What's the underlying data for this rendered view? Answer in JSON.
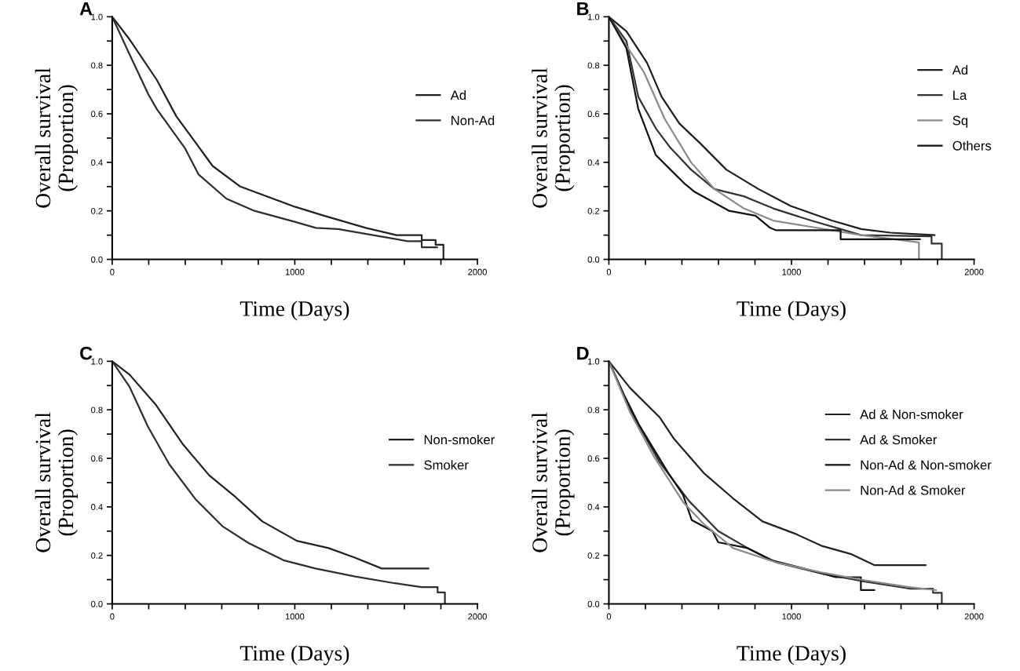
{
  "chart_data": [
    {
      "type": "line",
      "title": "A",
      "xlabel": "Time (Days)",
      "ylabel": "Overall survival\n(Proportion)",
      "legend": "right",
      "xlim": [
        0,
        2000
      ],
      "ylim": [
        0,
        1.0
      ],
      "xticks": [
        0,
        {
          "value": 200,
          "label": null
        },
        {
          "value": 400,
          "label": null
        },
        {
          "value": 600,
          "label": null
        },
        {
          "value": 800,
          "label": null
        },
        1000,
        {
          "value": 1200,
          "label": null
        },
        {
          "value": 1400,
          "label": null
        },
        {
          "value": 1600,
          "label": null
        },
        {
          "value": 1800,
          "label": null
        },
        2000
      ],
      "yticks": [
        {
          "value": 0,
          "label": "0.0"
        },
        {
          "value": 0.1,
          "label": null
        },
        0.2,
        {
          "value": 0.3,
          "label": null
        },
        0.4,
        {
          "value": 0.5,
          "label": null
        },
        0.6,
        {
          "value": 0.7,
          "label": null
        },
        0.8,
        {
          "value": 0.9,
          "label": null
        },
        {
          "value": 1.0,
          "label": "1.0"
        }
      ],
      "series": [
        {
          "name": "Ad",
          "color": "#222222",
          "x": [
            0,
            92,
            244,
            351,
            550,
            702,
            1000,
            1160,
            1389,
            1557,
            1695,
            1695,
            1771,
            1771,
            1814,
            1814
          ],
          "values": [
            1.0,
            0.91,
            0.74,
            0.59,
            0.385,
            0.3,
            0.217,
            0.18,
            0.13,
            0.1,
            0.1,
            0.08,
            0.08,
            0.06,
            0.06,
            0
          ]
        },
        {
          "name": "Non-Ad",
          "color": "#2e2e2e",
          "x": [
            0,
            92,
            198,
            244,
            397,
            473,
            626,
            779,
            1000,
            1115,
            1237,
            1466,
            1618,
            1695,
            1695,
            1779
          ],
          "values": [
            1.0,
            0.85,
            0.68,
            0.62,
            0.46,
            0.35,
            0.25,
            0.2,
            0.155,
            0.13,
            0.125,
            0.095,
            0.075,
            0.075,
            0.05,
            0.05
          ]
        }
      ]
    },
    {
      "type": "line",
      "title": "B",
      "xlabel": "Time (Days)",
      "ylabel": "Overall survival\n(Proportion)",
      "legend": "right",
      "xlim": [
        0,
        2000
      ],
      "ylim": [
        0,
        1.0
      ],
      "xticks": [
        0,
        {
          "value": 200,
          "label": null
        },
        {
          "value": 400,
          "label": null
        },
        {
          "value": 600,
          "label": null
        },
        {
          "value": 800,
          "label": null
        },
        1000,
        {
          "value": 1200,
          "label": null
        },
        {
          "value": 1400,
          "label": null
        },
        {
          "value": 1600,
          "label": null
        },
        {
          "value": 1800,
          "label": null
        },
        2000
      ],
      "yticks": [
        {
          "value": 0,
          "label": "0.0"
        },
        {
          "value": 0.1,
          "label": null
        },
        0.2,
        {
          "value": 0.3,
          "label": null
        },
        0.4,
        {
          "value": 0.5,
          "label": null
        },
        0.6,
        {
          "value": 0.7,
          "label": null
        },
        0.8,
        {
          "value": 0.9,
          "label": null
        },
        {
          "value": 1.0,
          "label": "1.0"
        }
      ],
      "series": [
        {
          "name": "Ad",
          "color": "#1e1e1e",
          "x": [
            0,
            96,
            209,
            289,
            386,
            498,
            643,
            819,
            996,
            1221,
            1382,
            1542,
            1783
          ],
          "values": [
            1.0,
            0.94,
            0.81,
            0.67,
            0.56,
            0.48,
            0.37,
            0.29,
            0.22,
            0.16,
            0.125,
            0.11,
            0.1
          ]
        },
        {
          "name": "La",
          "color": "#333333",
          "x": [
            0,
            96,
            161,
            257,
            337,
            450,
            578,
            739,
            900,
            1108,
            1269,
            1382,
            1767,
            1767,
            1823,
            1823
          ],
          "values": [
            1.0,
            0.9,
            0.67,
            0.54,
            0.46,
            0.37,
            0.29,
            0.26,
            0.21,
            0.16,
            0.125,
            0.1,
            0.095,
            0.065,
            0.065,
            0
          ]
        },
        {
          "name": "Sq",
          "color": "#8a8a8a",
          "x": [
            0,
            96,
            193,
            305,
            450,
            578,
            739,
            900,
            1060,
            1382,
            1698,
            1698
          ],
          "values": [
            1.0,
            0.88,
            0.77,
            0.58,
            0.4,
            0.29,
            0.21,
            0.16,
            0.14,
            0.1,
            0.07,
            0
          ]
        },
        {
          "name": "Others",
          "color": "#111111",
          "x": [
            0,
            96,
            161,
            257,
            337,
            418,
            466,
            659,
            803,
            883,
            916,
            1269,
            1269,
            1703
          ],
          "values": [
            1.0,
            0.87,
            0.62,
            0.43,
            0.37,
            0.31,
            0.28,
            0.2,
            0.18,
            0.13,
            0.12,
            0.12,
            0.083,
            0.083
          ]
        }
      ]
    },
    {
      "type": "line",
      "title": "C",
      "xlabel": "Time (Days)",
      "ylabel": "Overall survival\n(Proportion)",
      "legend": "right",
      "xlim": [
        0,
        2000
      ],
      "ylim": [
        0,
        1.0
      ],
      "xticks": [
        0,
        {
          "value": 200,
          "label": null
        },
        {
          "value": 400,
          "label": null
        },
        {
          "value": 600,
          "label": null
        },
        {
          "value": 800,
          "label": null
        },
        1000,
        {
          "value": 1200,
          "label": null
        },
        {
          "value": 1400,
          "label": null
        },
        {
          "value": 1600,
          "label": null
        },
        {
          "value": 1800,
          "label": null
        },
        2000
      ],
      "yticks": [
        {
          "value": 0,
          "label": "0.0"
        },
        {
          "value": 0.1,
          "label": null
        },
        0.2,
        {
          "value": 0.3,
          "label": null
        },
        0.4,
        {
          "value": 0.5,
          "label": null
        },
        0.6,
        {
          "value": 0.7,
          "label": null
        },
        0.8,
        {
          "value": 0.9,
          "label": null
        },
        {
          "value": 1.0,
          "label": "1.0"
        }
      ],
      "series": [
        {
          "name": "Non-smoker",
          "color": "#222222",
          "x": [
            0,
            95,
            240,
            385,
            531,
            676,
            822,
            1011,
            1185,
            1331,
            1476,
            1731
          ],
          "values": [
            1.0,
            0.945,
            0.82,
            0.66,
            0.53,
            0.44,
            0.34,
            0.26,
            0.23,
            0.19,
            0.146,
            0.146
          ]
        },
        {
          "name": "Smoker",
          "color": "#2e2e2e",
          "x": [
            0,
            95,
            196,
            313,
            458,
            604,
            749,
            938,
            1113,
            1331,
            1549,
            1695,
            1782,
            1782,
            1822,
            1822
          ],
          "values": [
            1.0,
            0.895,
            0.73,
            0.575,
            0.43,
            0.32,
            0.25,
            0.18,
            0.146,
            0.113,
            0.085,
            0.069,
            0.069,
            0.047,
            0.047,
            0
          ]
        }
      ]
    },
    {
      "type": "line",
      "title": "D",
      "xlabel": "Time (Days)",
      "ylabel": "Overall survival\n(Proportion)",
      "legend": "right",
      "xlim": [
        0,
        2000
      ],
      "ylim": [
        0,
        1.0
      ],
      "xticks": [
        0,
        {
          "value": 200,
          "label": null
        },
        {
          "value": 400,
          "label": null
        },
        {
          "value": 600,
          "label": null
        },
        {
          "value": 800,
          "label": null
        },
        1000,
        {
          "value": 1200,
          "label": null
        },
        {
          "value": 1400,
          "label": null
        },
        {
          "value": 1600,
          "label": null
        },
        {
          "value": 1800,
          "label": null
        },
        2000
      ],
      "yticks": [
        {
          "value": 0,
          "label": "0.0"
        },
        {
          "value": 0.1,
          "label": null
        },
        0.2,
        {
          "value": 0.3,
          "label": null
        },
        0.4,
        {
          "value": 0.5,
          "label": null
        },
        0.6,
        {
          "value": 0.7,
          "label": null
        },
        0.8,
        {
          "value": 0.9,
          "label": null
        },
        {
          "value": 1.0,
          "label": "1.0"
        }
      ],
      "series": [
        {
          "name": "Ad & Non-smoker",
          "color": "#222222",
          "x": [
            0,
            116,
            277,
            357,
            519,
            680,
            841,
            1018,
            1163,
            1324,
            1453,
            1734
          ],
          "values": [
            1.0,
            0.89,
            0.77,
            0.68,
            0.54,
            0.435,
            0.34,
            0.29,
            0.24,
            0.206,
            0.16,
            0.16
          ]
        },
        {
          "name": "Ad & Smoker",
          "color": "#333333",
          "x": [
            0,
            116,
            277,
            438,
            599,
            760,
            921,
            1163,
            1404,
            1646,
            1775,
            1775,
            1823,
            1823
          ],
          "values": [
            1.0,
            0.8,
            0.585,
            0.425,
            0.3,
            0.23,
            0.17,
            0.126,
            0.092,
            0.063,
            0.063,
            0.046,
            0.046,
            0
          ]
        },
        {
          "name": "Non-Ad & Non-smoker",
          "color": "#111111",
          "x": [
            0,
            84,
            164,
            325,
            406,
            454,
            567,
            599,
            760,
            889,
            1066,
            1243,
            1380,
            1380,
            1453
          ],
          "values": [
            1.0,
            0.86,
            0.74,
            0.54,
            0.45,
            0.345,
            0.3,
            0.254,
            0.23,
            0.18,
            0.146,
            0.11,
            0.11,
            0.057,
            0.057
          ]
        },
        {
          "name": "Non-Ad & Smoker",
          "color": "#8a8a8a",
          "x": [
            0,
            116,
            245,
            406,
            519,
            680,
            921,
            1163,
            1404,
            1646,
            1791
          ],
          "values": [
            1.0,
            0.79,
            0.61,
            0.42,
            0.33,
            0.23,
            0.17,
            0.13,
            0.097,
            0.069,
            0.057
          ]
        }
      ]
    }
  ]
}
